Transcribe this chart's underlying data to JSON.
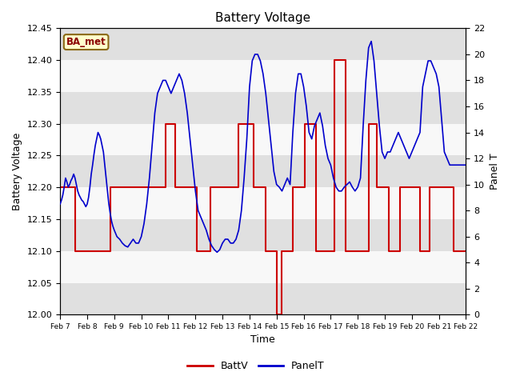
{
  "title": "Battery Voltage",
  "xlabel": "Time",
  "ylabel_left": "Battery Voltage",
  "ylabel_right": "Panel T",
  "annotation": "BA_met",
  "ylim_left": [
    12.0,
    12.45
  ],
  "ylim_right": [
    0,
    22
  ],
  "yticks_left": [
    12.0,
    12.05,
    12.1,
    12.15,
    12.2,
    12.25,
    12.3,
    12.35,
    12.4,
    12.45
  ],
  "yticks_right": [
    0,
    2,
    4,
    6,
    8,
    10,
    12,
    14,
    16,
    18,
    20,
    22
  ],
  "xtick_labels": [
    "Feb 7",
    "Feb 8",
    "Feb 9",
    "Feb 10",
    "Feb 11",
    "Feb 12",
    "Feb 13",
    "Feb 14",
    "Feb 15",
    "Feb 16",
    "Feb 17",
    "Feb 18",
    "Feb 19",
    "Feb 20",
    "Feb 21",
    "Feb 22"
  ],
  "bg_color": "#f0f0f0",
  "band_colors": [
    "#e0e0e0",
    "#f8f8f8"
  ],
  "line_color_battv": "#cc0000",
  "line_color_panelt": "#0000cc",
  "legend_labels": [
    "BattV",
    "PanelT"
  ],
  "battv_x": [
    7.0,
    7.05,
    7.5,
    7.55,
    8.3,
    8.35,
    8.8,
    8.85,
    9.7,
    9.75,
    10.5,
    10.55,
    10.85,
    10.9,
    11.2,
    11.25,
    11.65,
    11.7,
    12.0,
    12.05,
    12.5,
    12.55,
    13.0,
    13.05,
    13.55,
    13.6,
    14.1,
    14.15,
    14.55,
    14.6,
    14.95,
    15.0,
    15.05,
    15.15,
    15.2,
    15.4,
    15.45,
    15.55,
    15.6,
    16.0,
    16.05,
    16.4,
    16.45,
    16.75,
    16.8,
    17.1,
    17.15,
    17.5,
    17.55,
    18.0,
    18.05,
    18.4,
    18.45,
    18.7,
    18.75,
    19.1,
    19.15,
    19.5,
    19.55,
    19.85,
    19.9,
    20.25,
    20.3,
    20.6,
    20.65,
    21.0,
    21.05,
    21.5,
    21.55,
    22.0
  ],
  "battv_y": [
    12.2,
    12.2,
    12.2,
    12.1,
    12.1,
    12.1,
    12.1,
    12.2,
    12.2,
    12.2,
    12.2,
    12.2,
    12.2,
    12.3,
    12.3,
    12.2,
    12.2,
    12.2,
    12.2,
    12.1,
    12.1,
    12.2,
    12.2,
    12.2,
    12.2,
    12.3,
    12.3,
    12.2,
    12.2,
    12.1,
    12.1,
    12.0,
    12.0,
    12.0,
    12.1,
    12.1,
    12.1,
    12.1,
    12.2,
    12.2,
    12.3,
    12.3,
    12.1,
    12.1,
    12.1,
    12.1,
    12.4,
    12.4,
    12.1,
    12.1,
    12.1,
    12.3,
    12.3,
    12.2,
    12.2,
    12.2,
    12.1,
    12.1,
    12.2,
    12.2,
    12.2,
    12.2,
    12.1,
    12.1,
    12.2,
    12.2,
    12.2,
    12.2,
    12.1,
    12.1
  ],
  "panelt_x": [
    7.0,
    7.05,
    7.1,
    7.15,
    7.2,
    7.25,
    7.3,
    7.35,
    7.4,
    7.45,
    7.5,
    7.55,
    7.6,
    7.65,
    7.7,
    7.75,
    7.8,
    7.85,
    7.9,
    7.95,
    8.0,
    8.05,
    8.1,
    8.15,
    8.2,
    8.25,
    8.3,
    8.35,
    8.4,
    8.45,
    8.5,
    8.55,
    8.6,
    8.65,
    8.7,
    8.75,
    8.8,
    8.85,
    8.9,
    8.95,
    9.0,
    9.1,
    9.2,
    9.3,
    9.4,
    9.5,
    9.6,
    9.7,
    9.8,
    9.9,
    10.0,
    10.1,
    10.2,
    10.3,
    10.4,
    10.5,
    10.6,
    10.7,
    10.8,
    10.9,
    11.0,
    11.1,
    11.2,
    11.3,
    11.4,
    11.5,
    11.6,
    11.7,
    11.8,
    11.9,
    12.0,
    12.1,
    12.2,
    12.3,
    12.4,
    12.5,
    12.6,
    12.7,
    12.8,
    12.9,
    13.0,
    13.1,
    13.2,
    13.3,
    13.4,
    13.5,
    13.6,
    13.7,
    13.8,
    13.9,
    14.0,
    14.1,
    14.2,
    14.3,
    14.4,
    14.5,
    14.6,
    14.7,
    14.8,
    14.9,
    15.0,
    15.1,
    15.2,
    15.3,
    15.4,
    15.5,
    15.6,
    15.7,
    15.8,
    15.9,
    16.0,
    16.1,
    16.2,
    16.3,
    16.4,
    16.5,
    16.6,
    16.7,
    16.8,
    16.9,
    17.0,
    17.1,
    17.2,
    17.3,
    17.4,
    17.5,
    17.6,
    17.7,
    17.8,
    17.9,
    18.0,
    18.1,
    18.2,
    18.3,
    18.4,
    18.5,
    18.6,
    18.7,
    18.8,
    18.9,
    19.0,
    19.1,
    19.2,
    19.3,
    19.4,
    19.5,
    19.6,
    19.7,
    19.8,
    19.9,
    20.0,
    20.1,
    20.2,
    20.3,
    20.4,
    20.5,
    20.6,
    20.7,
    20.8,
    20.9,
    21.0,
    21.1,
    21.2,
    21.3,
    21.4,
    21.5,
    21.6,
    21.7,
    21.8,
    21.9,
    22.0
  ],
  "panelt_y": [
    8.5,
    8.8,
    9.2,
    9.8,
    10.5,
    10.2,
    9.8,
    10.0,
    10.3,
    10.5,
    10.8,
    10.5,
    10.0,
    9.5,
    9.2,
    9.0,
    8.8,
    8.7,
    8.5,
    8.3,
    8.5,
    9.0,
    9.8,
    10.8,
    11.5,
    12.3,
    13.0,
    13.5,
    14.0,
    13.8,
    13.5,
    13.0,
    12.5,
    11.5,
    10.5,
    9.5,
    8.5,
    7.8,
    7.2,
    6.8,
    6.5,
    6.0,
    5.8,
    5.5,
    5.3,
    5.2,
    5.5,
    5.8,
    5.5,
    5.5,
    6.0,
    7.0,
    8.5,
    10.5,
    13.0,
    15.5,
    17.0,
    17.5,
    18.0,
    18.0,
    17.5,
    17.0,
    17.5,
    18.0,
    18.5,
    18.0,
    17.0,
    15.5,
    13.5,
    11.5,
    9.5,
    8.0,
    7.5,
    7.0,
    6.5,
    5.8,
    5.3,
    5.0,
    4.8,
    5.0,
    5.5,
    5.8,
    5.8,
    5.5,
    5.5,
    5.8,
    6.5,
    8.0,
    10.5,
    13.5,
    17.5,
    19.5,
    20.0,
    20.0,
    19.5,
    18.5,
    17.0,
    15.0,
    13.0,
    11.0,
    10.0,
    9.8,
    9.5,
    10.0,
    10.5,
    10.0,
    14.0,
    17.0,
    18.5,
    18.5,
    17.5,
    16.0,
    14.0,
    13.5,
    14.5,
    15.0,
    15.5,
    14.5,
    13.0,
    12.0,
    11.5,
    10.5,
    9.8,
    9.5,
    9.5,
    9.8,
    10.0,
    10.2,
    9.8,
    9.5,
    9.8,
    10.5,
    14.5,
    18.0,
    20.5,
    21.0,
    19.5,
    17.0,
    14.5,
    12.5,
    12.0,
    12.5,
    12.5,
    13.0,
    13.5,
    14.0,
    13.5,
    13.0,
    12.5,
    12.0,
    12.5,
    13.0,
    13.5,
    14.0,
    17.5,
    18.5,
    19.5,
    19.5,
    19.0,
    18.5,
    17.5,
    15.0,
    12.5,
    12.0,
    11.5,
    11.5,
    11.5,
    11.5,
    11.5,
    11.5,
    11.5
  ]
}
